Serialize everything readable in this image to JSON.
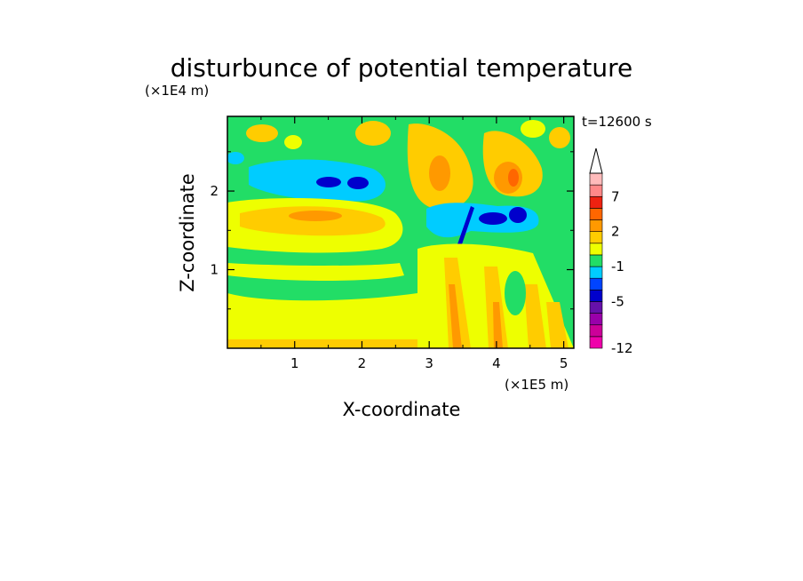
{
  "chart_data": {
    "type": "heatmap",
    "title": "disturbunce of potential temperature",
    "xlabel": "X-coordinate",
    "ylabel": "Z-coordinate",
    "x_unit": "(×1E5 m)",
    "y_unit": "(×1E4 m)",
    "time_label": "t=12600 s",
    "xlim": [
      0,
      5.15
    ],
    "ylim": [
      0,
      2.95
    ],
    "x_ticks": [
      1,
      2,
      3,
      4,
      5
    ],
    "y_ticks": [
      1,
      2
    ],
    "colorbar": {
      "levels": [
        -12,
        -10,
        -8,
        -6,
        -5,
        -4,
        -2,
        -1,
        0,
        1,
        2,
        3,
        5,
        7,
        9,
        11
      ],
      "tick_labels": [
        "7",
        "2",
        "-1",
        "-5",
        "-12"
      ],
      "tick_values": [
        7,
        2,
        -1,
        -5,
        -12
      ],
      "colors": [
        "#ee00aa",
        "#cc0099",
        "#9900aa",
        "#6611aa",
        "#0000cc",
        "#0044ff",
        "#00ccff",
        "#22dd66",
        "#eeff00",
        "#ffcc00",
        "#ff9900",
        "#ff6600",
        "#ee2211",
        "#ff8888",
        "#ffbbbb"
      ],
      "extend_top_color": "#ffffff"
    },
    "regions": [
      {
        "name": "background",
        "color": "#22dd66"
      },
      {
        "name": "upper-orange-spots",
        "color": "#ffcc00"
      },
      {
        "name": "upper-cyan-band",
        "color": "#00ccff"
      },
      {
        "name": "upper-blue-cores",
        "color": "#0000cc"
      },
      {
        "name": "mid-yellow-band",
        "color": "#eeff00"
      },
      {
        "name": "mid-orange-band",
        "color": "#ff9900"
      },
      {
        "name": "lower-yellow-band",
        "color": "#eeff00"
      },
      {
        "name": "right-orange-plume",
        "color": "#ff9900"
      },
      {
        "name": "right-blue-lobe",
        "color": "#0000cc"
      },
      {
        "name": "convective-columns",
        "color": "#ff9900"
      }
    ]
  }
}
